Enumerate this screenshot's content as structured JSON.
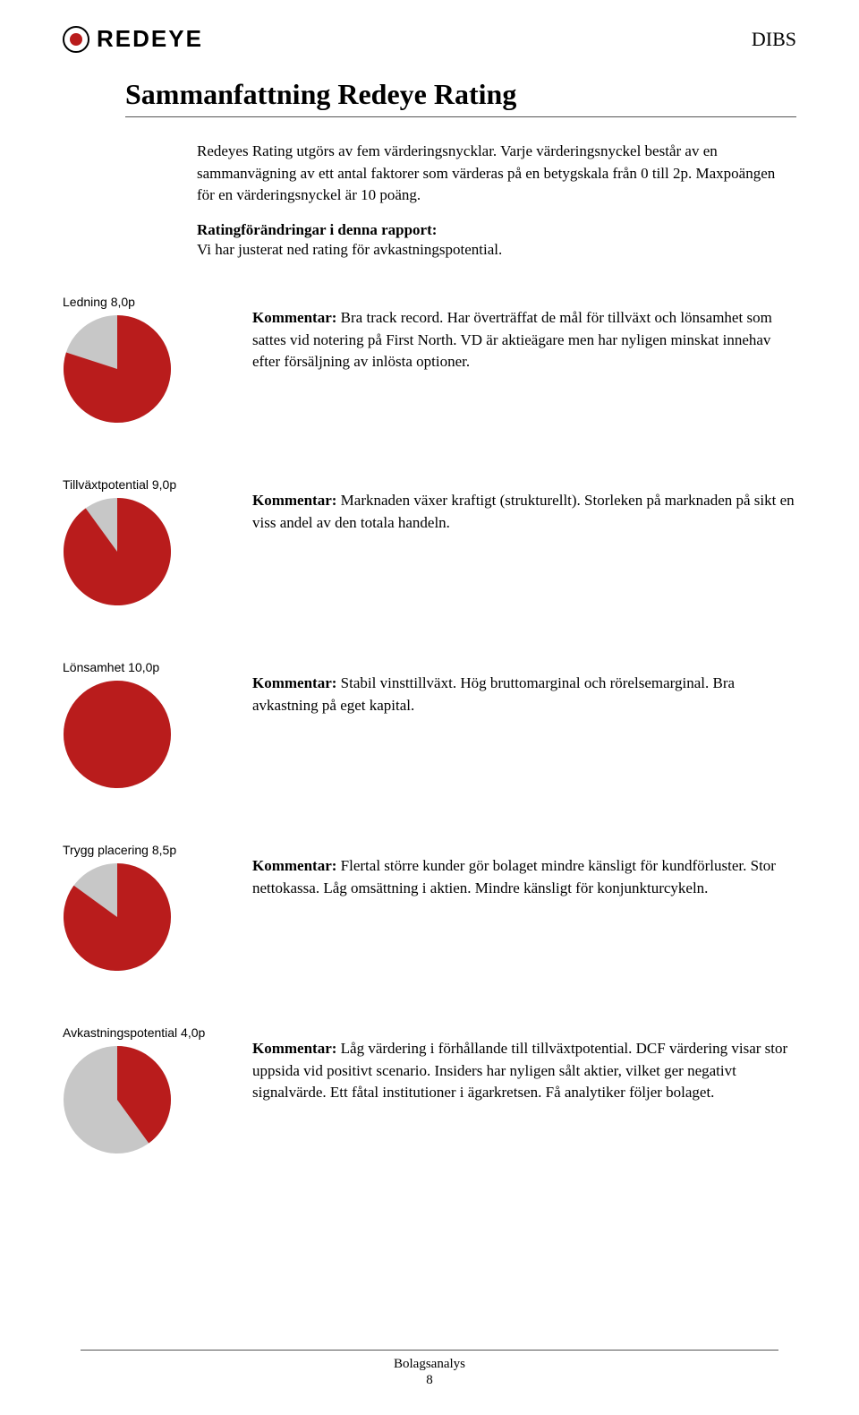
{
  "header": {
    "logo_text": "REDEYE",
    "company": "DIBS"
  },
  "title": "Sammanfattning Redeye Rating",
  "intro": "Redeyes Rating utgörs av fem värderingsnycklar. Varje värderingsnyckel består av en sammanvägning av ett antal faktorer som värderas på en betygskala från 0 till 2p. Maxpoängen för en värderingsnyckel är 10 poäng.",
  "changes": {
    "heading": "Ratingförändringar i denna rapport:",
    "text": "Vi har justerat ned rating för avkastningspotential."
  },
  "comment_label": "Kommentar: ",
  "pie_style": {
    "fill_color": "#b91c1c",
    "empty_color": "#c7c7c7",
    "radius": 60,
    "max_score": 10
  },
  "ratings": [
    {
      "label": "Ledning 8,0p",
      "score": 8.0,
      "comment": "Bra track record. Har överträffat de mål för tillväxt och lönsamhet som sattes vid notering på First North. VD är aktieägare men har nyligen minskat innehav efter försäljning av inlösta optioner."
    },
    {
      "label": "Tillväxtpotential 9,0p",
      "score": 9.0,
      "comment": "Marknaden växer kraftigt (strukturellt). Storleken på marknaden på sikt en viss andel av den totala handeln."
    },
    {
      "label": "Lönsamhet 10,0p",
      "score": 10.0,
      "comment": "Stabil vinsttillväxt. Hög bruttomarginal och rörelsemarginal. Bra avkastning på eget kapital."
    },
    {
      "label": "Trygg placering 8,5p",
      "score": 8.5,
      "comment": "Flertal större kunder gör bolaget mindre känsligt för kundförluster. Stor nettokassa. Låg omsättning i aktien. Mindre känsligt för konjunkturcykeln."
    },
    {
      "label": "Avkastningspotential 4,0p",
      "score": 4.0,
      "comment": "Låg värdering i förhållande till tillväxtpotential. DCF värdering visar stor uppsida vid positivt scenario. Insiders har nyligen sålt aktier, vilket ger negativt signalvärde. Ett fåtal institutioner i ägarkretsen. Få analytiker följer bolaget."
    }
  ],
  "footer": {
    "line1": "Bolagsanalys",
    "line2": "8"
  }
}
